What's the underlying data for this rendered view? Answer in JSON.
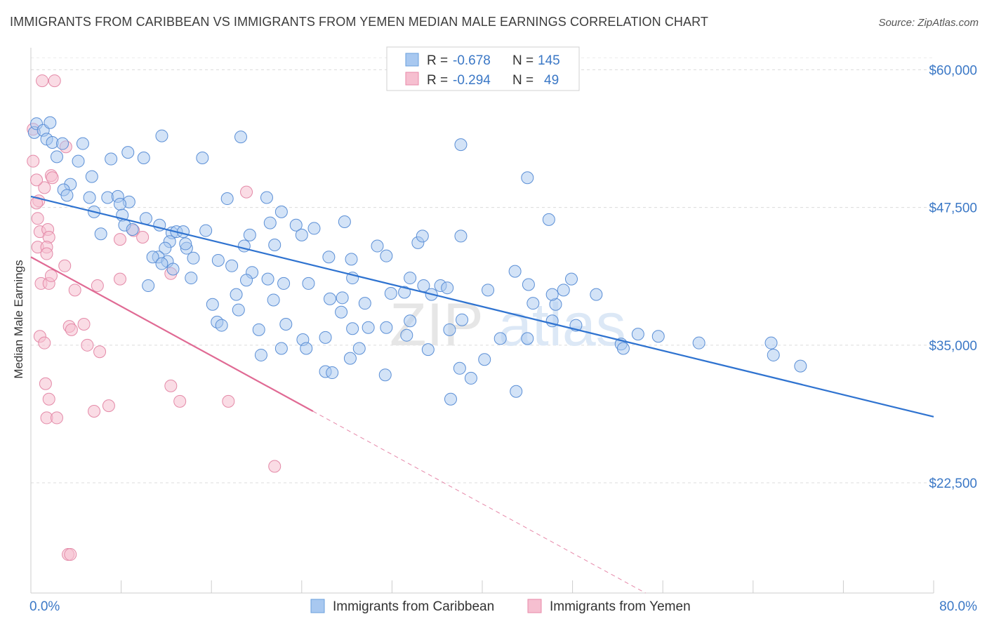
{
  "header": {
    "title": "IMMIGRANTS FROM CARIBBEAN VS IMMIGRANTS FROM YEMEN MEDIAN MALE EARNINGS CORRELATION CHART",
    "source": "Source: ZipAtlas.com"
  },
  "legend": {
    "rows": [
      {
        "r_label": "R =",
        "r_value": "-0.678",
        "n_label": "N =",
        "n_value": "145",
        "color": "#a8c8f0",
        "stroke": "#6a9fdc"
      },
      {
        "r_label": "R =",
        "r_value": "-0.294",
        "n_label": "N =",
        "n_value": "49",
        "color": "#f6bfd0",
        "stroke": "#e88aa8"
      }
    ]
  },
  "watermark": {
    "zip": "ZIP",
    "atlas": "atlas"
  },
  "colors": {
    "caribbean_fill": "#a8c8f0",
    "caribbean_stroke": "#5b8fd6",
    "caribbean_line": "#2f73d0",
    "yemen_fill": "#f6bfd0",
    "yemen_stroke": "#e48aa8",
    "yemen_line": "#e06a94"
  },
  "chart_data": {
    "type": "scatter",
    "xlabel": "",
    "ylabel": "Median Male Earnings",
    "x_tick_labels": [
      "0.0%",
      "80.0%"
    ],
    "y_tick_labels": [
      "$60,000",
      "$47,500",
      "$35,000",
      "$22,500"
    ],
    "y_ticks": [
      60000,
      47500,
      35000,
      22500
    ],
    "xlim": [
      0,
      80
    ],
    "ylim": [
      12500,
      62000
    ],
    "grid": true,
    "series": [
      {
        "name": "Immigrants from Caribbean",
        "trend": {
          "x0": 0,
          "y0": 48500,
          "x1": 80,
          "y1": 28500
        },
        "points": [
          [
            0.3,
            54.3
          ],
          [
            0.5,
            55.1
          ],
          [
            1.1,
            54.5
          ],
          [
            1.4,
            53.7
          ],
          [
            1.7,
            55.2
          ],
          [
            1.9,
            53.4
          ],
          [
            2.8,
            53.3
          ],
          [
            4.6,
            53.3
          ],
          [
            4.2,
            51.7
          ],
          [
            2.3,
            52.1
          ],
          [
            3.5,
            49.6
          ],
          [
            5.4,
            50.3
          ],
          [
            5.2,
            48.4
          ],
          [
            6.8,
            48.4
          ],
          [
            7.7,
            48.5
          ],
          [
            8.7,
            48.0
          ],
          [
            7.1,
            51.9
          ],
          [
            8.6,
            52.5
          ],
          [
            10.0,
            52.0
          ],
          [
            7.9,
            47.8
          ],
          [
            11.6,
            54.0
          ],
          [
            2.9,
            49.1
          ],
          [
            3.2,
            48.6
          ],
          [
            5.6,
            47.1
          ],
          [
            6.2,
            45.1
          ],
          [
            8.1,
            46.8
          ],
          [
            8.3,
            45.9
          ],
          [
            9.0,
            45.5
          ],
          [
            10.2,
            46.5
          ],
          [
            11.4,
            45.9
          ],
          [
            12.5,
            45.2
          ],
          [
            12.9,
            45.3
          ],
          [
            13.5,
            45.3
          ],
          [
            12.3,
            44.4
          ],
          [
            11.9,
            43.8
          ],
          [
            11.3,
            43.0
          ],
          [
            12.1,
            42.6
          ],
          [
            10.8,
            43.0
          ],
          [
            11.6,
            42.4
          ],
          [
            13.8,
            43.8
          ],
          [
            14.4,
            42.9
          ],
          [
            13.7,
            44.2
          ],
          [
            15.5,
            45.4
          ],
          [
            17.4,
            48.3
          ],
          [
            15.2,
            52.0
          ],
          [
            18.6,
            53.9
          ],
          [
            19.4,
            45.0
          ],
          [
            18.9,
            44.0
          ],
          [
            20.9,
            48.4
          ],
          [
            21.2,
            46.1
          ],
          [
            21.6,
            44.1
          ],
          [
            22.2,
            47.1
          ],
          [
            23.5,
            45.9
          ],
          [
            24.0,
            45.0
          ],
          [
            25.1,
            45.6
          ],
          [
            26.4,
            43.0
          ],
          [
            28.4,
            42.8
          ],
          [
            30.7,
            44.0
          ],
          [
            31.5,
            43.1
          ],
          [
            34.3,
            44.3
          ],
          [
            12.6,
            41.9
          ],
          [
            14.2,
            41.1
          ],
          [
            10.4,
            40.4
          ],
          [
            16.6,
            42.7
          ],
          [
            17.8,
            42.2
          ],
          [
            19.6,
            41.6
          ],
          [
            19.1,
            40.9
          ],
          [
            21.0,
            41.0
          ],
          [
            21.5,
            39.1
          ],
          [
            22.4,
            40.6
          ],
          [
            24.6,
            40.6
          ],
          [
            26.5,
            39.2
          ],
          [
            27.6,
            39.3
          ],
          [
            28.5,
            41.1
          ],
          [
            29.6,
            38.8
          ],
          [
            31.9,
            39.7
          ],
          [
            33.1,
            39.8
          ],
          [
            34.8,
            40.4
          ],
          [
            36.3,
            40.4
          ],
          [
            36.9,
            40.2
          ],
          [
            16.1,
            38.7
          ],
          [
            16.5,
            37.1
          ],
          [
            16.9,
            36.8
          ],
          [
            18.4,
            38.2
          ],
          [
            18.2,
            39.6
          ],
          [
            20.2,
            36.4
          ],
          [
            22.6,
            36.9
          ],
          [
            24.1,
            35.5
          ],
          [
            26.1,
            35.7
          ],
          [
            27.5,
            38.0
          ],
          [
            28.5,
            36.5
          ],
          [
            29.9,
            36.6
          ],
          [
            31.5,
            36.6
          ],
          [
            33.6,
            37.2
          ],
          [
            33.3,
            35.9
          ],
          [
            35.5,
            39.6
          ],
          [
            37.1,
            36.4
          ],
          [
            38.2,
            37.3
          ],
          [
            40.5,
            40.0
          ],
          [
            41.6,
            35.6
          ],
          [
            20.4,
            34.1
          ],
          [
            22.2,
            34.7
          ],
          [
            24.4,
            34.7
          ],
          [
            26.1,
            32.6
          ],
          [
            26.7,
            32.5
          ],
          [
            28.3,
            33.8
          ],
          [
            29.1,
            34.7
          ],
          [
            31.4,
            32.3
          ],
          [
            35.2,
            34.6
          ],
          [
            38.0,
            32.9
          ],
          [
            39.0,
            32.0
          ],
          [
            40.2,
            33.7
          ],
          [
            44.0,
            35.6
          ],
          [
            37.2,
            30.1
          ],
          [
            43.0,
            30.8
          ],
          [
            44.5,
            38.8
          ],
          [
            46.2,
            37.2
          ],
          [
            46.5,
            38.7
          ],
          [
            48.3,
            36.8
          ],
          [
            47.9,
            41.0
          ],
          [
            44.1,
            40.5
          ],
          [
            46.2,
            39.6
          ],
          [
            47.2,
            40.0
          ],
          [
            50.1,
            39.6
          ],
          [
            42.9,
            41.7
          ],
          [
            38.1,
            53.2
          ],
          [
            44.0,
            50.2
          ],
          [
            45.9,
            46.4
          ],
          [
            52.3,
            35.1
          ],
          [
            52.5,
            34.7
          ],
          [
            53.8,
            36.0
          ],
          [
            55.6,
            35.8
          ],
          [
            59.2,
            35.2
          ],
          [
            65.6,
            35.2
          ],
          [
            65.8,
            34.1
          ],
          [
            68.2,
            33.1
          ],
          [
            33.6,
            41.1
          ],
          [
            38.1,
            44.9
          ],
          [
            34.7,
            44.9
          ],
          [
            27.8,
            46.2
          ]
        ]
      },
      {
        "name": "Immigrants from Yemen",
        "trend": {
          "x0": 0,
          "y0": 43000,
          "x1": 25,
          "y1": 29000
        },
        "points": [
          [
            0.2,
            54.6
          ],
          [
            0.2,
            51.7
          ],
          [
            0.7,
            48.1
          ],
          [
            0.6,
            46.5
          ],
          [
            0.5,
            47.9
          ],
          [
            0.8,
            45.3
          ],
          [
            1.5,
            45.5
          ],
          [
            1.6,
            44.8
          ],
          [
            0.6,
            43.9
          ],
          [
            1.4,
            43.9
          ],
          [
            1.4,
            43.3
          ],
          [
            0.9,
            40.6
          ],
          [
            1.6,
            40.6
          ],
          [
            1.8,
            41.3
          ],
          [
            3.0,
            42.2
          ],
          [
            3.9,
            40.0
          ],
          [
            5.9,
            40.4
          ],
          [
            7.9,
            44.6
          ],
          [
            9.1,
            45.4
          ],
          [
            9.9,
            44.8
          ],
          [
            7.9,
            41.0
          ],
          [
            12.4,
            41.5
          ],
          [
            0.8,
            35.8
          ],
          [
            1.2,
            35.2
          ],
          [
            3.4,
            36.7
          ],
          [
            3.6,
            36.4
          ],
          [
            4.7,
            36.9
          ],
          [
            5.0,
            35.0
          ],
          [
            6.1,
            34.4
          ],
          [
            1.3,
            31.5
          ],
          [
            1.6,
            30.1
          ],
          [
            1.4,
            28.4
          ],
          [
            2.3,
            28.4
          ],
          [
            5.6,
            29.0
          ],
          [
            6.9,
            29.5
          ],
          [
            12.4,
            31.3
          ],
          [
            13.2,
            29.9
          ],
          [
            17.5,
            29.9
          ],
          [
            21.6,
            24.0
          ],
          [
            1.0,
            59.0
          ],
          [
            2.1,
            59.0
          ],
          [
            3.1,
            53.0
          ],
          [
            1.8,
            50.4
          ],
          [
            1.9,
            50.2
          ],
          [
            1.2,
            49.3
          ],
          [
            0.5,
            50.0
          ],
          [
            19.1,
            48.9
          ],
          [
            3.3,
            16.0
          ],
          [
            3.5,
            16.0
          ]
        ]
      }
    ]
  },
  "bottom_legend": {
    "items": [
      {
        "label": "Immigrants from Caribbean"
      },
      {
        "label": "Immigrants from Yemen"
      }
    ]
  }
}
